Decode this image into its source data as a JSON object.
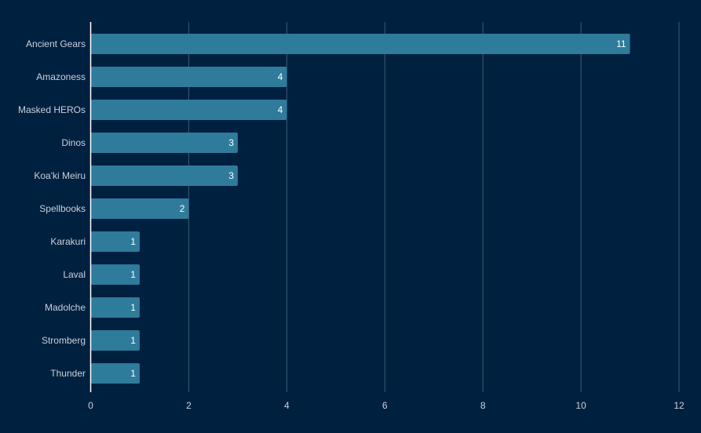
{
  "colors": {
    "background": "#002040",
    "bar": "#2e7b9b",
    "gridline": "#3d5a73",
    "axis": "#ffffff",
    "label_text": "#c8d2dc",
    "value_text": "#ffffff"
  },
  "chart_data": {
    "type": "bar",
    "orientation": "horizontal",
    "title": "",
    "xlabel": "",
    "ylabel": "",
    "categories": [
      "Ancient Gears",
      "Amazoness",
      "Masked HEROs",
      "Dinos",
      "Koa'ki Meiru",
      "Spellbooks",
      "Karakuri",
      "Laval",
      "Madolche",
      "Stromberg",
      "Thunder"
    ],
    "values": [
      11,
      4,
      4,
      3,
      3,
      2,
      1,
      1,
      1,
      1,
      1
    ],
    "xlim": [
      0,
      12
    ],
    "xticks": [
      0,
      2,
      4,
      6,
      8,
      10,
      12
    ],
    "grid": true,
    "legend": "none",
    "data_labels": true
  }
}
